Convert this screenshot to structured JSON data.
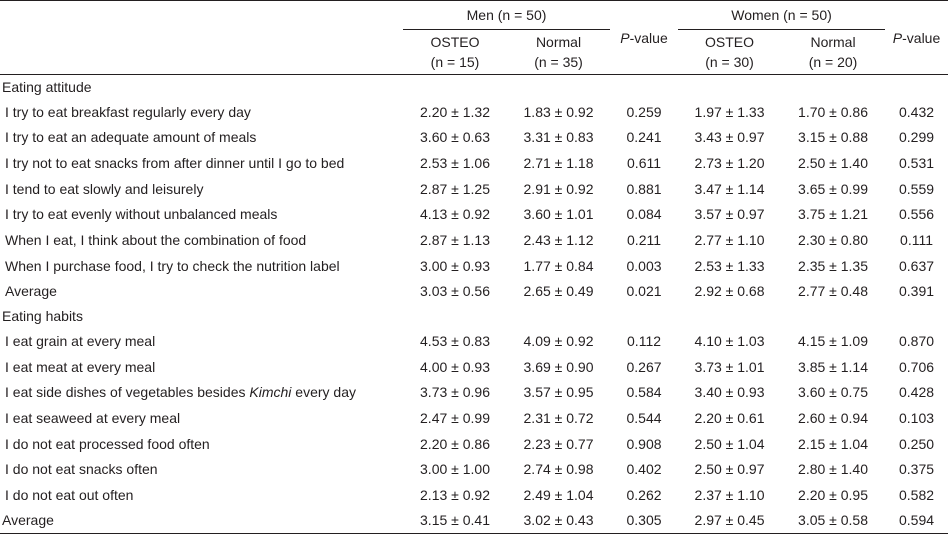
{
  "header": {
    "men_group": "Men (n = 50)",
    "women_group": "Women (n = 50)",
    "p_value_italic": "P",
    "p_value_rest": "-value",
    "osteo": "OSTEO",
    "normal": "Normal",
    "men_osteo_n": "(n = 15)",
    "men_normal_n": "(n = 35)",
    "women_osteo_n": "(n = 30)",
    "women_normal_n": "(n = 20)"
  },
  "sections": [
    {
      "title": "Eating attitude",
      "rows": [
        {
          "label": "I try to eat breakfast regularly every day",
          "mo": "2.20 ± 1.32",
          "mn": "1.83 ± 0.92",
          "mp": "0.259",
          "wo": "1.97 ± 1.33",
          "wn": "1.70 ± 0.86",
          "wp": "0.432"
        },
        {
          "label": "I try to eat an adequate amount of meals",
          "mo": "3.60 ± 0.63",
          "mn": "3.31 ± 0.83",
          "mp": "0.241",
          "wo": "3.43 ± 0.97",
          "wn": "3.15 ± 0.88",
          "wp": "0.299"
        },
        {
          "label": "I try not to eat snacks from after dinner until I go to bed",
          "mo": "2.53 ± 1.06",
          "mn": "2.71 ± 1.18",
          "mp": "0.611",
          "wo": "2.73 ± 1.20",
          "wn": "2.50 ± 1.40",
          "wp": "0.531"
        },
        {
          "label": "I tend to eat slowly and leisurely",
          "mo": "2.87 ± 1.25",
          "mn": "2.91 ± 0.92",
          "mp": "0.881",
          "wo": "3.47 ± 1.14",
          "wn": "3.65 ± 0.99",
          "wp": "0.559"
        },
        {
          "label": "I try to eat evenly without unbalanced meals",
          "mo": "4.13 ± 0.92",
          "mn": "3.60 ± 1.01",
          "mp": "0.084",
          "wo": "3.57 ± 0.97",
          "wn": "3.75 ± 1.21",
          "wp": "0.556"
        },
        {
          "label": "When I eat, I think about the combination of food",
          "mo": "2.87 ± 1.13",
          "mn": "2.43 ± 1.12",
          "mp": "0.211",
          "wo": "2.77 ± 1.10",
          "wn": "2.30 ± 0.80",
          "wp": "0.111"
        },
        {
          "label": "When I purchase food, I try to check the nutrition label",
          "mo": "3.00 ± 0.93",
          "mn": "1.77 ± 0.84",
          "mp": "0.003",
          "wo": "2.53 ± 1.33",
          "wn": "2.35 ± 1.35",
          "wp": "0.637"
        },
        {
          "label": "Average",
          "mo": "3.03 ± 0.56",
          "mn": "2.65 ± 0.49",
          "mp": "0.021",
          "wo": "2.92 ± 0.68",
          "wn": "2.77 ± 0.48",
          "wp": "0.391"
        }
      ]
    },
    {
      "title": "Eating habits",
      "rows": [
        {
          "label": "I eat grain at every meal",
          "mo": "4.53 ± 0.83",
          "mn": "4.09 ± 0.92",
          "mp": "0.112",
          "wo": "4.10 ± 1.03",
          "wn": "4.15 ± 1.09",
          "wp": "0.870"
        },
        {
          "label": "I eat meat at every meal",
          "mo": "4.00 ± 0.93",
          "mn": "3.69 ± 0.90",
          "mp": "0.267",
          "wo": "3.73 ± 1.01",
          "wn": "3.85 ± 1.14",
          "wp": "0.706"
        },
        {
          "label_pre": "I eat side dishes of vegetables besides ",
          "label_italic": "Kimchi",
          "label_post": " every day",
          "mo": "3.73 ± 0.96",
          "mn": "3.57 ± 0.95",
          "mp": "0.584",
          "wo": "3.40 ± 0.93",
          "wn": "3.60 ± 0.75",
          "wp": "0.428"
        },
        {
          "label": "I eat seaweed at every meal",
          "mo": "2.47 ± 0.99",
          "mn": "2.31 ± 0.72",
          "mp": "0.544",
          "wo": "2.20 ± 0.61",
          "wn": "2.60 ± 0.94",
          "wp": "0.103"
        },
        {
          "label": "I do not eat processed food often",
          "mo": "2.20 ± 0.86",
          "mn": "2.23 ± 0.77",
          "mp": "0.908",
          "wo": "2.50 ± 1.04",
          "wn": "2.15 ± 1.04",
          "wp": "0.250"
        },
        {
          "label": "I do not eat snacks often",
          "mo": "3.00 ± 1.00",
          "mn": "2.74 ± 0.98",
          "mp": "0.402",
          "wo": "2.50 ± 0.97",
          "wn": "2.80 ± 1.40",
          "wp": "0.375"
        },
        {
          "label": "I do not eat out often",
          "mo": "2.13 ± 0.92",
          "mn": "2.49 ± 1.04",
          "mp": "0.262",
          "wo": "2.37 ± 1.10",
          "wn": "2.20 ± 0.95",
          "wp": "0.582"
        }
      ]
    }
  ],
  "overall": {
    "label": "Average",
    "mo": "3.15 ± 0.41",
    "mn": "3.02 ± 0.43",
    "mp": "0.305",
    "wo": "2.97 ± 0.45",
    "wn": "3.05 ± 0.58",
    "wp": "0.594"
  }
}
